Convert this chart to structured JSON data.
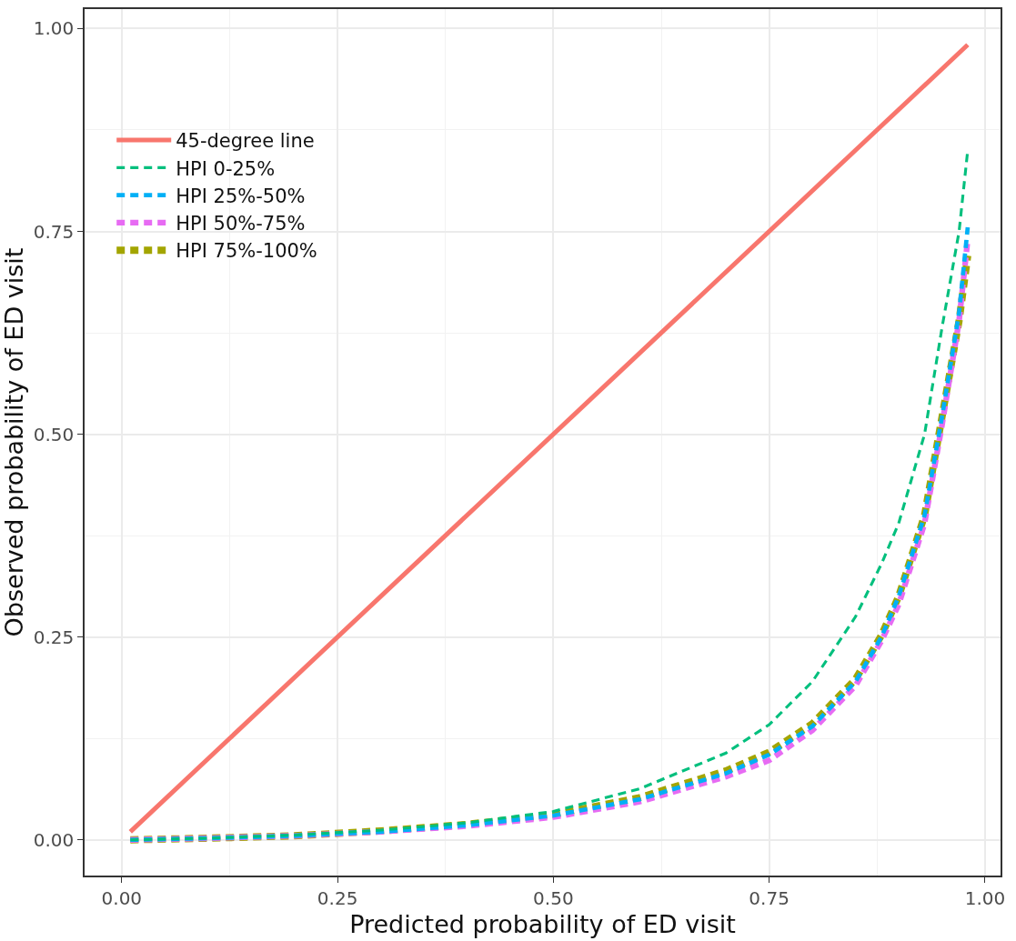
{
  "chart_data": {
    "type": "line",
    "xlabel": "Predicted probability of ED visit",
    "ylabel": "Observed probability of ED visit",
    "xlim": [
      -0.043,
      1.018
    ],
    "ylim": [
      -0.044,
      1.024
    ],
    "xticks": [
      {
        "value": 0,
        "label": "0.00"
      },
      0.25,
      {
        "value": 0.5,
        "label": "0.50"
      },
      0.75,
      {
        "value": 1,
        "label": "1.00"
      }
    ],
    "yticks": [
      {
        "value": 0,
        "label": "0.00"
      },
      0.25,
      {
        "value": 0.5,
        "label": "0.50"
      },
      0.75,
      {
        "value": 1,
        "label": "1.00"
      }
    ],
    "grid": true,
    "legend": "top left",
    "series": [
      {
        "name": "45-degree line",
        "color": "#f8766d",
        "line_style": "solid",
        "x": [
          0.01,
          0.98
        ],
        "values": [
          0.01,
          0.98
        ]
      },
      {
        "name": "HPI 0-25%",
        "color": "#00bf7d",
        "line_style": "dashed",
        "x": [
          0.01,
          0.1,
          0.2,
          0.3,
          0.4,
          0.5,
          0.6,
          0.7,
          0.75,
          0.8,
          0.85,
          0.88,
          0.9,
          0.93,
          0.95,
          0.97,
          0.98
        ],
        "values": [
          0,
          0.002,
          0.006,
          0.012,
          0.021,
          0.035,
          0.063,
          0.107,
          0.142,
          0.195,
          0.275,
          0.34,
          0.39,
          0.5,
          0.63,
          0.75,
          0.85
        ]
      },
      {
        "name": "HPI 25%-50%",
        "color": "#00b0f6",
        "line_style": "dashed",
        "x": [
          0.01,
          0.1,
          0.2,
          0.3,
          0.4,
          0.5,
          0.6,
          0.7,
          0.75,
          0.8,
          0.85,
          0.88,
          0.9,
          0.93,
          0.95,
          0.97,
          0.98
        ],
        "values": [
          0,
          0.002,
          0.005,
          0.01,
          0.018,
          0.03,
          0.05,
          0.082,
          0.105,
          0.14,
          0.195,
          0.25,
          0.3,
          0.4,
          0.52,
          0.65,
          0.755
        ]
      },
      {
        "name": "HPI 50%-75%",
        "color": "#e76bf3",
        "line_style": "dashed",
        "x": [
          0.01,
          0.1,
          0.2,
          0.3,
          0.4,
          0.5,
          0.6,
          0.7,
          0.75,
          0.8,
          0.85,
          0.88,
          0.9,
          0.93,
          0.95,
          0.97,
          0.98
        ],
        "values": [
          0,
          0.002,
          0.005,
          0.01,
          0.017,
          0.028,
          0.047,
          0.078,
          0.098,
          0.135,
          0.19,
          0.245,
          0.29,
          0.39,
          0.51,
          0.64,
          0.74
        ]
      },
      {
        "name": "HPI 75%-100%",
        "color": "#a3a500",
        "line_style": "dashed",
        "x": [
          0.01,
          0.1,
          0.2,
          0.3,
          0.4,
          0.5,
          0.6,
          0.7,
          0.75,
          0.8,
          0.85,
          0.88,
          0.9,
          0.93,
          0.95,
          0.97,
          0.98
        ],
        "values": [
          0,
          0.002,
          0.005,
          0.011,
          0.019,
          0.031,
          0.052,
          0.085,
          0.108,
          0.143,
          0.198,
          0.252,
          0.3,
          0.4,
          0.52,
          0.64,
          0.72
        ]
      }
    ]
  }
}
